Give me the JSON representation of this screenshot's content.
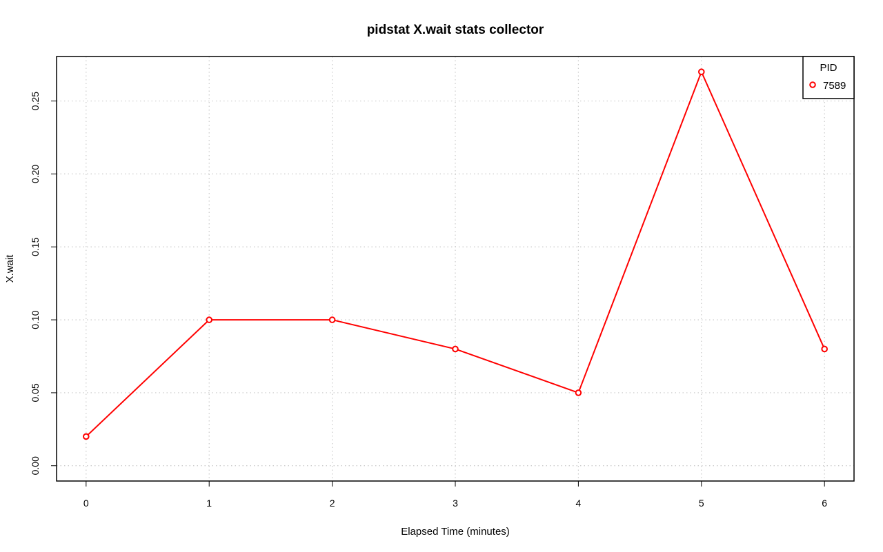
{
  "chart_data": {
    "type": "line",
    "title": "pidstat X.wait stats collector",
    "xlabel": "Elapsed Time (minutes)",
    "ylabel": "X.wait",
    "x": [
      0,
      1,
      2,
      3,
      4,
      5,
      6
    ],
    "xlim": [
      -0.24,
      6.24
    ],
    "ylim": [
      -0.0105,
      0.2805
    ],
    "x_ticks": [
      0,
      1,
      2,
      3,
      4,
      5,
      6
    ],
    "x_tick_labels": [
      "0",
      "1",
      "2",
      "3",
      "4",
      "5",
      "6"
    ],
    "y_ticks": [
      0.0,
      0.05,
      0.1,
      0.15,
      0.2,
      0.25
    ],
    "y_tick_labels": [
      "0.00",
      "0.05",
      "0.10",
      "0.15",
      "0.20",
      "0.25"
    ],
    "grid": true,
    "series": [
      {
        "name": "7589",
        "color": "#ff0000",
        "values": [
          0.02,
          0.1,
          0.1,
          0.08,
          0.05,
          0.27,
          0.08
        ]
      }
    ],
    "legend": {
      "title": "PID",
      "placement": "top-right"
    }
  }
}
